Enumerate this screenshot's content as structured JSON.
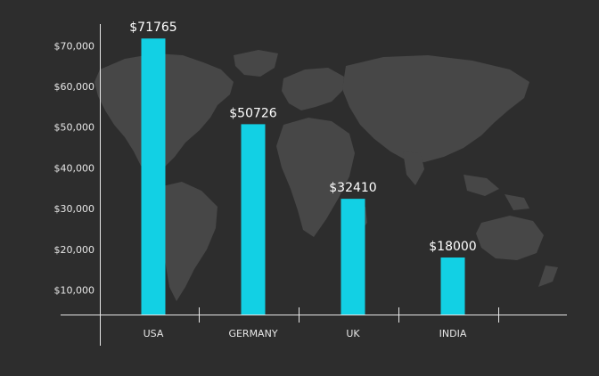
{
  "colors": {
    "background": "#2d2d2d",
    "bar": "#12d0e4",
    "axis": "#e6e6e6",
    "map": "#4a4a4a"
  },
  "chart_data": {
    "type": "bar",
    "categories": [
      "USA",
      "GERMANY",
      "UK",
      "INDIA"
    ],
    "values": [
      71765,
      50726,
      32410,
      18000
    ],
    "data_labels": [
      "$71765",
      "$50726",
      "$32410",
      "$18000"
    ],
    "y_ticks": [
      10000,
      20000,
      30000,
      40000,
      50000,
      60000,
      70000
    ],
    "y_tick_labels": [
      "$10,000",
      "$20,000",
      "$30,000",
      "$40,000",
      "$50,000",
      "$60,000",
      "$70,000"
    ],
    "ylim": [
      4000,
      74000
    ],
    "grid": false,
    "legend": "none",
    "title": "",
    "xlabel": "",
    "ylabel": ""
  }
}
